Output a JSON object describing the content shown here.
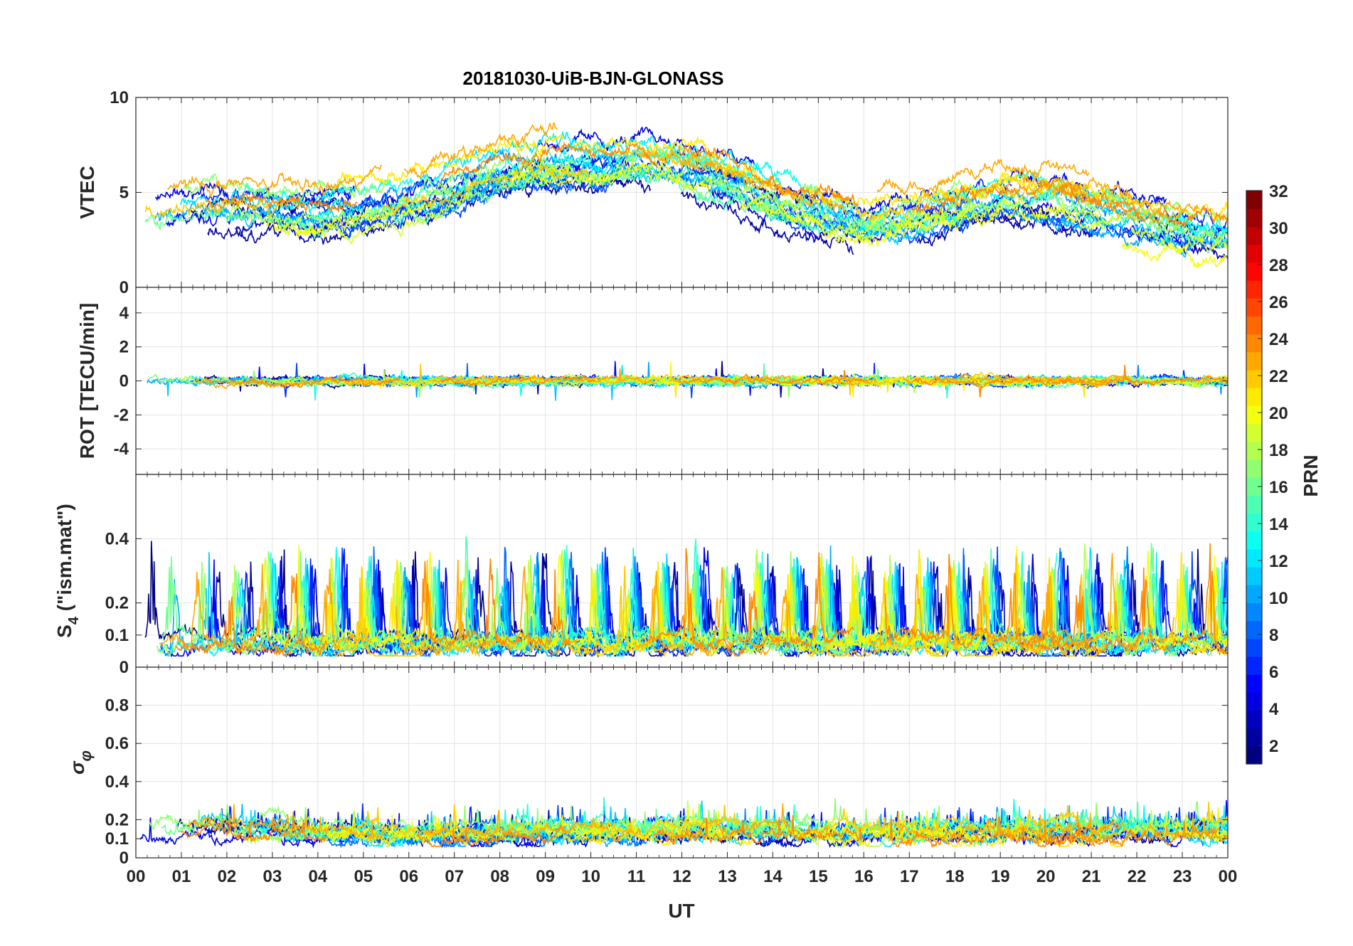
{
  "chart_data": {
    "type": "line",
    "title": "20181030-UiB-BJN-GLONASS",
    "xlabel": "UT",
    "x_tick_labels": [
      "00",
      "01",
      "02",
      "03",
      "04",
      "05",
      "06",
      "07",
      "08",
      "09",
      "10",
      "11",
      "12",
      "13",
      "14",
      "15",
      "16",
      "17",
      "18",
      "19",
      "20",
      "21",
      "22",
      "23",
      "00"
    ],
    "x_range_hours": [
      0,
      24
    ],
    "panels": [
      {
        "id": "vtec",
        "ylabel": "VTEC",
        "ylim": [
          0,
          10
        ],
        "yticks": [
          0,
          5,
          10
        ],
        "ytick_labels": [
          "0",
          "5",
          "10"
        ],
        "profile": {
          "x": [
            0,
            1,
            2,
            3,
            4,
            5,
            6,
            7,
            8,
            9,
            10,
            11,
            12,
            13,
            14,
            15,
            16,
            17,
            18,
            19,
            20,
            21,
            22,
            23,
            24
          ],
          "y": [
            3.8,
            4.0,
            4.1,
            4.0,
            3.9,
            4.2,
            4.6,
            5.2,
            6.0,
            6.3,
            6.2,
            6.4,
            6.3,
            5.6,
            4.6,
            3.9,
            3.3,
            3.6,
            4.2,
            4.9,
            4.7,
            4.3,
            3.8,
            3.2,
            3.0
          ]
        },
        "noise": 0.35,
        "segment_spread": 1.2
      },
      {
        "id": "rot",
        "ylabel": "ROT [TECU/min]",
        "ylim": [
          -5.5,
          5.5
        ],
        "yticks": [
          -4,
          -2,
          0,
          2,
          4
        ],
        "ytick_labels": [
          "-4",
          "-2",
          "0",
          "2",
          "4"
        ],
        "profile": {
          "x": [
            0,
            24
          ],
          "y": [
            0,
            0
          ]
        },
        "noise": 0.18,
        "segment_spread": 0.0
      },
      {
        "id": "s4",
        "ylabel": "S4 (\"ism.mat\")",
        "ylim": [
          0,
          0.6
        ],
        "yticks": [
          0,
          0.1,
          0.2,
          0.4
        ],
        "ytick_labels": [
          "0",
          "0.1",
          "0.2",
          "0.4"
        ],
        "profile": {
          "x": [
            0,
            24
          ],
          "y": [
            0.07,
            0.07
          ]
        },
        "noise": 0.02,
        "segment_spread": 0.02,
        "spikes": true
      },
      {
        "id": "sigma-phi",
        "ylabel": "σφ",
        "ylim": [
          0,
          1.0
        ],
        "yticks": [
          0,
          0.1,
          0.2,
          0.4,
          0.6,
          0.8
        ],
        "ytick_labels": [
          "0",
          "0.1",
          "0.2",
          "0.4",
          "0.6",
          "0.8"
        ],
        "profile": {
          "x": [
            0,
            1,
            2,
            3,
            4,
            5,
            6,
            7,
            8,
            9,
            10,
            11,
            12,
            13,
            14,
            15,
            16,
            17,
            18,
            19,
            20,
            21,
            22,
            23,
            24
          ],
          "y": [
            0.15,
            0.17,
            0.17,
            0.16,
            0.15,
            0.14,
            0.13,
            0.12,
            0.13,
            0.14,
            0.14,
            0.14,
            0.15,
            0.15,
            0.15,
            0.14,
            0.13,
            0.14,
            0.15,
            0.14,
            0.14,
            0.14,
            0.15,
            0.14,
            0.15
          ]
        },
        "noise": 0.03,
        "segment_spread": 0.04
      }
    ],
    "series_prn": [
      1,
      2,
      3,
      4,
      5,
      6,
      7,
      8,
      9,
      10,
      11,
      12,
      13,
      14,
      15,
      16,
      17,
      18,
      19,
      20,
      21,
      22,
      23,
      24
    ],
    "colorbar": {
      "label": "PRN",
      "range": [
        1,
        32
      ],
      "tick_values": [
        2,
        4,
        6,
        8,
        10,
        12,
        14,
        16,
        18,
        20,
        22,
        24,
        26,
        28,
        30,
        32
      ],
      "tick_labels": [
        "2",
        "4",
        "6",
        "8",
        "10",
        "12",
        "14",
        "16",
        "18",
        "20",
        "22",
        "24",
        "26",
        "28",
        "30",
        "32"
      ],
      "levels": 32,
      "colormap": "jet"
    }
  }
}
